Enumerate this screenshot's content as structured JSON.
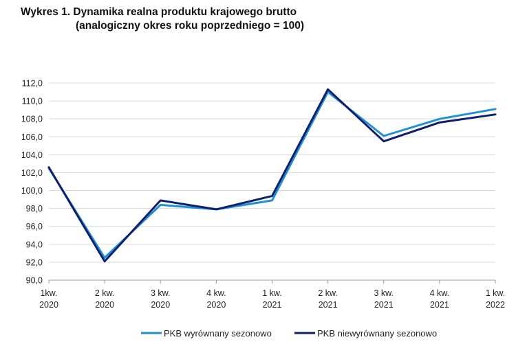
{
  "title_line1": "Wykres 1. Dynamika realna produktu krajowego brutto",
  "title_line2": "(analogiczny okres roku poprzedniego = 100)",
  "chart_data": {
    "type": "line",
    "title": "Wykres 1. Dynamika realna produktu krajowego brutto (analogiczny okres roku poprzedniego = 100)",
    "categories": [
      [
        "1kw.",
        "2020"
      ],
      [
        "2 kw.",
        "2020"
      ],
      [
        "3 kw.",
        "2020"
      ],
      [
        "4 kw.",
        "2020"
      ],
      [
        "1 kw.",
        "2021"
      ],
      [
        "2 kw.",
        "2021"
      ],
      [
        "3 kw.",
        "2021"
      ],
      [
        "4 kw.",
        "2021"
      ],
      [
        "1 kw.",
        "2022"
      ]
    ],
    "ylim": [
      90,
      112
    ],
    "yticks": [
      "90,0",
      "92,0",
      "94,0",
      "96,0",
      "98,0",
      "100,0",
      "102,0",
      "104,0",
      "106,0",
      "108,0",
      "110,0",
      "112,0"
    ],
    "grid": "horizontal",
    "legend_position": "bottom",
    "series": [
      {
        "name": "PKB wyrównany sezonowo",
        "color": "#1f8fd6",
        "values": [
          102.5,
          92.5,
          98.4,
          97.9,
          98.9,
          111.0,
          106.1,
          108.0,
          109.1
        ]
      },
      {
        "name": "PKB niewyrównany sezonowo",
        "color": "#0d1f6e",
        "values": [
          102.6,
          92.1,
          98.9,
          97.9,
          99.4,
          111.3,
          105.5,
          107.6,
          108.5
        ]
      }
    ]
  }
}
